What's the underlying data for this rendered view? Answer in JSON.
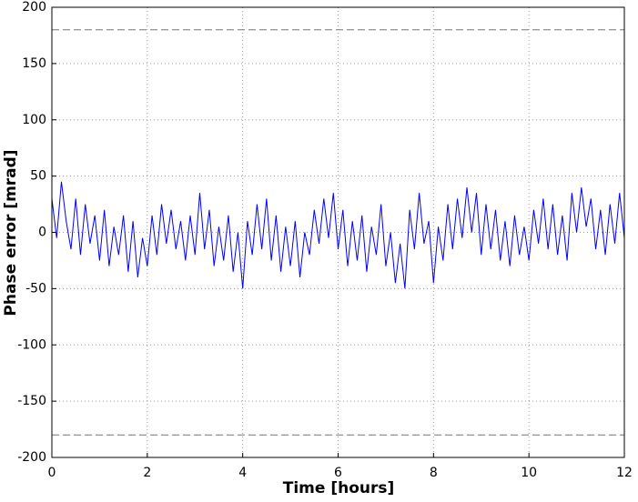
{
  "chart_data": {
    "type": "line",
    "xlabel": "Time [hours]",
    "ylabel": "Phase error [mrad]",
    "x": [
      0,
      0.1,
      0.2,
      0.3,
      0.4,
      0.5,
      0.6,
      0.7,
      0.8,
      0.9,
      1,
      1.1,
      1.2,
      1.3,
      1.4,
      1.5,
      1.6,
      1.7,
      1.8,
      1.9,
      2,
      2.1,
      2.2,
      2.3,
      2.4,
      2.5,
      2.6,
      2.7,
      2.8,
      2.9,
      3,
      3.1,
      3.2,
      3.3,
      3.4,
      3.5,
      3.6,
      3.7,
      3.8,
      3.9,
      4,
      4.1,
      4.2,
      4.3,
      4.4,
      4.5,
      4.6,
      4.7,
      4.8,
      4.9,
      5,
      5.1,
      5.2,
      5.3,
      5.4,
      5.5,
      5.6,
      5.7,
      5.8,
      5.9,
      6,
      6.1,
      6.2,
      6.3,
      6.4,
      6.5,
      6.6,
      6.7,
      6.8,
      6.9,
      7,
      7.1,
      7.2,
      7.3,
      7.4,
      7.5,
      7.6,
      7.7,
      7.8,
      7.9,
      8,
      8.1,
      8.2,
      8.3,
      8.4,
      8.5,
      8.6,
      8.7,
      8.8,
      8.9,
      9,
      9.1,
      9.2,
      9.3,
      9.4,
      9.5,
      9.6,
      9.7,
      9.8,
      9.9,
      10,
      10.1,
      10.2,
      10.3,
      10.4,
      10.5,
      10.6,
      10.7,
      10.8,
      10.9,
      11,
      11.1,
      11.2,
      11.3,
      11.4,
      11.5,
      11.6,
      11.7,
      11.8,
      11.9,
      12
    ],
    "values": [
      30,
      -5,
      45,
      10,
      -15,
      30,
      -20,
      25,
      -10,
      15,
      -25,
      20,
      -30,
      5,
      -20,
      15,
      -35,
      10,
      -40,
      -5,
      -30,
      15,
      -20,
      25,
      -10,
      20,
      -15,
      10,
      -25,
      15,
      -20,
      35,
      -15,
      20,
      -30,
      5,
      -25,
      15,
      -35,
      0,
      -50,
      10,
      -20,
      25,
      -15,
      30,
      -25,
      15,
      -35,
      5,
      -30,
      10,
      -40,
      0,
      -20,
      20,
      -10,
      30,
      -5,
      35,
      -15,
      20,
      -30,
      10,
      -25,
      15,
      -35,
      5,
      -20,
      25,
      -30,
      0,
      -45,
      -10,
      -50,
      20,
      -15,
      35,
      -10,
      10,
      -45,
      5,
      -25,
      25,
      -15,
      30,
      -5,
      40,
      0,
      35,
      -20,
      25,
      -15,
      20,
      -25,
      10,
      -30,
      15,
      -20,
      5,
      -25,
      20,
      -10,
      30,
      -15,
      25,
      -20,
      15,
      -25,
      35,
      0,
      40,
      5,
      30,
      -15,
      20,
      -20,
      25,
      -10,
      35,
      -5
    ],
    "color": "#0000ff",
    "hlines": [
      180,
      -180
    ],
    "hline_color": "#777777",
    "xlim": [
      0,
      12
    ],
    "xticks": [
      0,
      2,
      4,
      6,
      8,
      10,
      12
    ],
    "ylim": [
      -200,
      200
    ],
    "yticks": [
      -200,
      -150,
      -100,
      -50,
      0,
      50,
      100,
      150,
      200
    ],
    "grid": true
  }
}
